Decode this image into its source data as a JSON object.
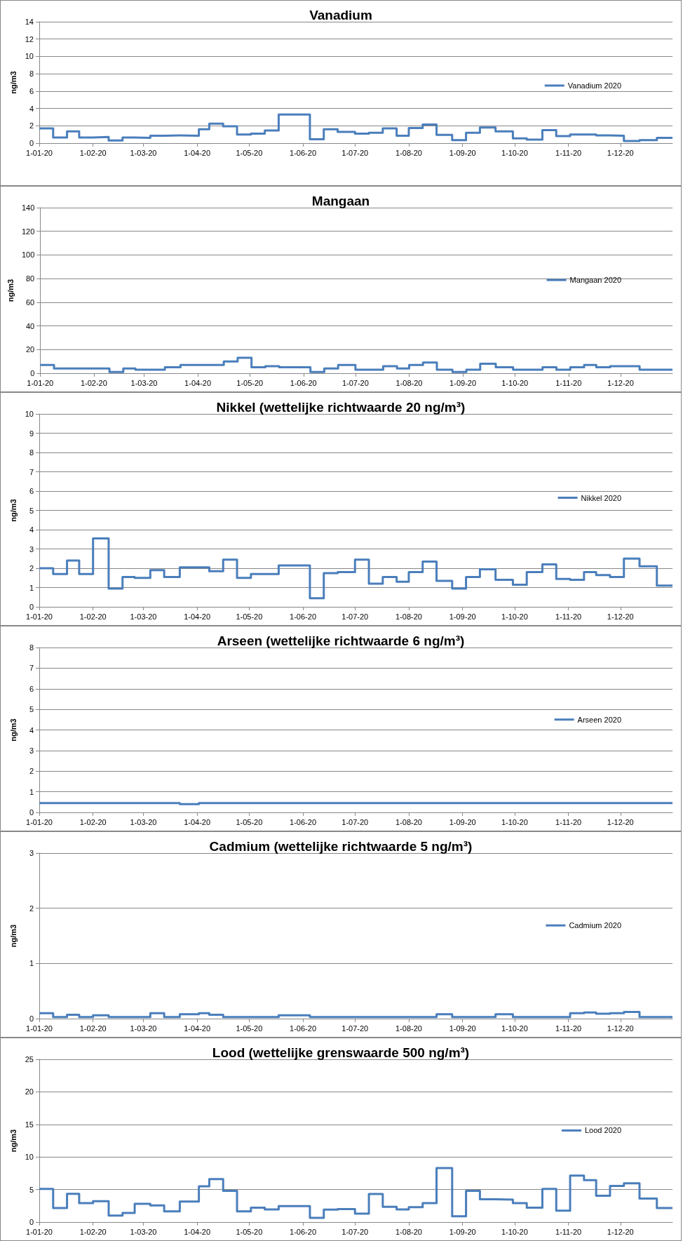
{
  "chart_data": [
    {
      "type": "step",
      "title": "Vanadium",
      "ylabel": "ng/m3",
      "ylim": [
        0,
        14
      ],
      "yticks": [
        0,
        2,
        4,
        6,
        8,
        10,
        12,
        14
      ],
      "xlim": [
        "2020-01-01",
        "2020-12-31"
      ],
      "xticks": [
        {
          "value": "2020-01-01",
          "label": "1-01-20"
        },
        {
          "value": "2020-02-01",
          "label": "1-02-20"
        },
        {
          "value": "2020-03-01",
          "label": "1-03-20"
        },
        {
          "value": "2020-04-01",
          "label": "1-04-20"
        },
        {
          "value": "2020-05-01",
          "label": "1-05-20"
        },
        {
          "value": "2020-06-01",
          "label": "1-06-20"
        },
        {
          "value": "2020-07-01",
          "label": "1-07-20"
        },
        {
          "value": "2020-08-01",
          "label": "1-08-20"
        },
        {
          "value": "2020-09-01",
          "label": "1-09-20"
        },
        {
          "value": "2020-10-01",
          "label": "1-10-20"
        },
        {
          "value": "2020-11-01",
          "label": "1-11-20"
        },
        {
          "value": "2020-12-01",
          "label": "1-12-20"
        }
      ],
      "x": [
        "2020-01-01",
        "2020-01-09",
        "2020-01-17",
        "2020-01-24",
        "2020-02-01",
        "2020-02-10",
        "2020-02-18",
        "2020-02-25",
        "2020-03-05",
        "2020-03-13",
        "2020-03-22",
        "2020-04-02",
        "2020-04-08",
        "2020-04-16",
        "2020-04-24",
        "2020-05-02",
        "2020-05-10",
        "2020-05-18",
        "2020-05-27",
        "2020-06-05",
        "2020-06-13",
        "2020-06-21",
        "2020-07-01",
        "2020-07-09",
        "2020-07-17",
        "2020-07-25",
        "2020-08-01",
        "2020-08-09",
        "2020-08-17",
        "2020-08-26",
        "2020-09-03",
        "2020-09-11",
        "2020-09-20",
        "2020-09-30",
        "2020-10-08",
        "2020-10-17",
        "2020-10-25",
        "2020-11-02",
        "2020-11-10",
        "2020-11-17",
        "2020-11-25",
        "2020-12-03",
        "2020-12-12",
        "2020-12-22",
        "2020-12-31"
      ],
      "series": [
        {
          "name": "Vanadium 2020",
          "color": "#4a7ebb",
          "values": [
            1.7,
            0.65,
            1.35,
            0.65,
            0.7,
            0.3,
            0.65,
            0.6,
            0.85,
            0.9,
            0.85,
            1.6,
            2.25,
            1.95,
            1.0,
            1.1,
            1.45,
            3.3,
            3.3,
            0.45,
            1.6,
            1.3,
            1.1,
            1.2,
            1.7,
            0.85,
            1.75,
            2.15,
            0.95,
            0.35,
            1.2,
            1.8,
            1.35,
            0.55,
            0.4,
            1.5,
            0.8,
            1.0,
            1.0,
            0.9,
            0.85,
            0.25,
            0.35,
            0.6,
            0.6
          ]
        }
      ],
      "grid": "y",
      "legend": "right",
      "marker": "none",
      "line_style": "solid"
    },
    {
      "type": "step",
      "title": "Mangaan",
      "ylabel": "ng/m3",
      "ylim": [
        0,
        140
      ],
      "yticks": [
        0,
        20,
        40,
        60,
        80,
        100,
        120,
        140
      ],
      "xlim": [
        "2020-01-01",
        "2020-12-31"
      ],
      "xticks": [
        {
          "value": "2020-01-01",
          "label": "1-01-20"
        },
        {
          "value": "2020-02-01",
          "label": "1-02-20"
        },
        {
          "value": "2020-03-01",
          "label": "1-03-20"
        },
        {
          "value": "2020-04-01",
          "label": "1-04-20"
        },
        {
          "value": "2020-05-01",
          "label": "1-05-20"
        },
        {
          "value": "2020-06-01",
          "label": "1-06-20"
        },
        {
          "value": "2020-07-01",
          "label": "1-07-20"
        },
        {
          "value": "2020-08-01",
          "label": "1-08-20"
        },
        {
          "value": "2020-09-01",
          "label": "1-09-20"
        },
        {
          "value": "2020-10-01",
          "label": "1-10-20"
        },
        {
          "value": "2020-11-01",
          "label": "1-11-20"
        },
        {
          "value": "2020-12-01",
          "label": "1-12-20"
        }
      ],
      "x": [
        "2020-01-01",
        "2020-01-09",
        "2020-01-17",
        "2020-01-24",
        "2020-02-01",
        "2020-02-10",
        "2020-02-18",
        "2020-02-25",
        "2020-03-05",
        "2020-03-13",
        "2020-03-22",
        "2020-04-02",
        "2020-04-08",
        "2020-04-16",
        "2020-04-24",
        "2020-05-02",
        "2020-05-10",
        "2020-05-18",
        "2020-05-27",
        "2020-06-05",
        "2020-06-13",
        "2020-06-21",
        "2020-07-01",
        "2020-07-09",
        "2020-07-17",
        "2020-07-25",
        "2020-08-01",
        "2020-08-09",
        "2020-08-17",
        "2020-08-26",
        "2020-09-03",
        "2020-09-11",
        "2020-09-20",
        "2020-09-30",
        "2020-10-08",
        "2020-10-17",
        "2020-10-25",
        "2020-11-02",
        "2020-11-10",
        "2020-11-17",
        "2020-11-25",
        "2020-12-03",
        "2020-12-12",
        "2020-12-22",
        "2020-12-31"
      ],
      "series": [
        {
          "name": "Mangaan 2020",
          "color": "#4a7ebb",
          "values": [
            7,
            4,
            4,
            4,
            4,
            1,
            4,
            3,
            3,
            5,
            7,
            7,
            7,
            10,
            13,
            5,
            6,
            5,
            5,
            1,
            4,
            7,
            3,
            3,
            6,
            4,
            7,
            9,
            3,
            1,
            3,
            8,
            5,
            3,
            3,
            5,
            3,
            5,
            7,
            5,
            6,
            6,
            3,
            3,
            3
          ]
        }
      ],
      "grid": "y",
      "legend": "right",
      "marker": "none",
      "line_style": "solid"
    },
    {
      "type": "step",
      "title": "Nikkel (wettelijke richtwaarde 20 ng/m³)",
      "ylabel": "ng/m3",
      "ylim": [
        0,
        10
      ],
      "yticks": [
        0,
        1,
        2,
        3,
        4,
        5,
        6,
        7,
        8,
        9,
        10
      ],
      "xlim": [
        "2020-01-01",
        "2020-12-31"
      ],
      "xticks": [
        {
          "value": "2020-01-01",
          "label": "1-01-20"
        },
        {
          "value": "2020-02-01",
          "label": "1-02-20"
        },
        {
          "value": "2020-03-01",
          "label": "1-03-20"
        },
        {
          "value": "2020-04-01",
          "label": "1-04-20"
        },
        {
          "value": "2020-05-01",
          "label": "1-05-20"
        },
        {
          "value": "2020-06-01",
          "label": "1-06-20"
        },
        {
          "value": "2020-07-01",
          "label": "1-07-20"
        },
        {
          "value": "2020-08-01",
          "label": "1-08-20"
        },
        {
          "value": "2020-09-01",
          "label": "1-09-20"
        },
        {
          "value": "2020-10-01",
          "label": "1-10-20"
        },
        {
          "value": "2020-11-01",
          "label": "1-11-20"
        },
        {
          "value": "2020-12-01",
          "label": "1-12-20"
        }
      ],
      "x": [
        "2020-01-01",
        "2020-01-09",
        "2020-01-17",
        "2020-01-24",
        "2020-02-01",
        "2020-02-10",
        "2020-02-18",
        "2020-02-25",
        "2020-03-05",
        "2020-03-13",
        "2020-03-22",
        "2020-04-02",
        "2020-04-08",
        "2020-04-16",
        "2020-04-24",
        "2020-05-02",
        "2020-05-10",
        "2020-05-18",
        "2020-05-27",
        "2020-06-05",
        "2020-06-13",
        "2020-06-21",
        "2020-07-01",
        "2020-07-09",
        "2020-07-17",
        "2020-07-25",
        "2020-08-01",
        "2020-08-09",
        "2020-08-17",
        "2020-08-26",
        "2020-09-03",
        "2020-09-11",
        "2020-09-20",
        "2020-09-30",
        "2020-10-08",
        "2020-10-17",
        "2020-10-25",
        "2020-11-02",
        "2020-11-10",
        "2020-11-17",
        "2020-11-25",
        "2020-12-03",
        "2020-12-12",
        "2020-12-22",
        "2020-12-31"
      ],
      "series": [
        {
          "name": "Nikkel 2020",
          "color": "#4a7ebb",
          "values": [
            2.0,
            1.7,
            2.4,
            1.7,
            3.55,
            0.95,
            1.55,
            1.5,
            1.9,
            1.55,
            2.05,
            2.05,
            1.85,
            2.45,
            1.5,
            1.7,
            1.7,
            2.15,
            2.15,
            0.45,
            1.75,
            1.8,
            2.45,
            1.2,
            1.55,
            1.3,
            1.8,
            2.35,
            1.35,
            0.95,
            1.55,
            1.95,
            1.4,
            1.15,
            1.8,
            2.2,
            1.45,
            1.4,
            1.8,
            1.65,
            1.55,
            2.5,
            2.1,
            1.1,
            1.1
          ]
        }
      ],
      "grid": "y",
      "legend": "right",
      "marker": "none",
      "line_style": "solid"
    },
    {
      "type": "step",
      "title": "Arseen (wettelijke richtwaarde 6 ng/m³)",
      "ylabel": "ng/m3",
      "ylim": [
        0,
        8
      ],
      "yticks": [
        0,
        1,
        2,
        3,
        4,
        5,
        6,
        7,
        8
      ],
      "xlim": [
        "2020-01-01",
        "2020-12-31"
      ],
      "xticks": [
        {
          "value": "2020-01-01",
          "label": "1-01-20"
        },
        {
          "value": "2020-02-01",
          "label": "1-02-20"
        },
        {
          "value": "2020-03-01",
          "label": "1-03-20"
        },
        {
          "value": "2020-04-01",
          "label": "1-04-20"
        },
        {
          "value": "2020-05-01",
          "label": "1-05-20"
        },
        {
          "value": "2020-06-01",
          "label": "1-06-20"
        },
        {
          "value": "2020-07-01",
          "label": "1-07-20"
        },
        {
          "value": "2020-08-01",
          "label": "1-08-20"
        },
        {
          "value": "2020-09-01",
          "label": "1-09-20"
        },
        {
          "value": "2020-10-01",
          "label": "1-10-20"
        },
        {
          "value": "2020-11-01",
          "label": "1-11-20"
        },
        {
          "value": "2020-12-01",
          "label": "1-12-20"
        }
      ],
      "x": [
        "2020-01-01",
        "2020-01-09",
        "2020-01-17",
        "2020-01-24",
        "2020-02-01",
        "2020-02-10",
        "2020-02-18",
        "2020-02-25",
        "2020-03-05",
        "2020-03-13",
        "2020-03-22",
        "2020-04-02",
        "2020-04-08",
        "2020-04-16",
        "2020-04-24",
        "2020-05-02",
        "2020-05-10",
        "2020-05-18",
        "2020-05-27",
        "2020-06-05",
        "2020-06-13",
        "2020-06-21",
        "2020-07-01",
        "2020-07-09",
        "2020-07-17",
        "2020-07-25",
        "2020-08-01",
        "2020-08-09",
        "2020-08-17",
        "2020-08-26",
        "2020-09-03",
        "2020-09-11",
        "2020-09-20",
        "2020-09-30",
        "2020-10-08",
        "2020-10-17",
        "2020-10-25",
        "2020-11-02",
        "2020-11-10",
        "2020-11-17",
        "2020-11-25",
        "2020-12-03",
        "2020-12-12",
        "2020-12-22",
        "2020-12-31"
      ],
      "series": [
        {
          "name": "Arseen 2020",
          "color": "#4a7ebb",
          "values": [
            0.45,
            0.45,
            0.45,
            0.45,
            0.45,
            0.45,
            0.45,
            0.45,
            0.45,
            0.45,
            0.4,
            0.45,
            0.45,
            0.45,
            0.45,
            0.45,
            0.45,
            0.45,
            0.45,
            0.45,
            0.45,
            0.45,
            0.45,
            0.45,
            0.45,
            0.45,
            0.45,
            0.45,
            0.45,
            0.45,
            0.45,
            0.45,
            0.45,
            0.45,
            0.45,
            0.45,
            0.45,
            0.45,
            0.45,
            0.45,
            0.45,
            0.45,
            0.45,
            0.45,
            0.45
          ]
        }
      ],
      "grid": "y",
      "legend": "right",
      "marker": "none",
      "line_style": "solid"
    },
    {
      "type": "step",
      "title": "Cadmium (wettelijke richtwaarde 5 ng/m³)",
      "ylabel": "ng/m3",
      "ylim": [
        0,
        3
      ],
      "yticks": [
        0,
        1,
        2,
        3
      ],
      "xlim": [
        "2020-01-01",
        "2020-12-31"
      ],
      "xticks": [
        {
          "value": "2020-01-01",
          "label": "1-01-20"
        },
        {
          "value": "2020-02-01",
          "label": "1-02-20"
        },
        {
          "value": "2020-03-01",
          "label": "1-03-20"
        },
        {
          "value": "2020-04-01",
          "label": "1-04-20"
        },
        {
          "value": "2020-05-01",
          "label": "1-05-20"
        },
        {
          "value": "2020-06-01",
          "label": "1-06-20"
        },
        {
          "value": "2020-07-01",
          "label": "1-07-20"
        },
        {
          "value": "2020-08-01",
          "label": "1-08-20"
        },
        {
          "value": "2020-09-01",
          "label": "1-09-20"
        },
        {
          "value": "2020-10-01",
          "label": "1-10-20"
        },
        {
          "value": "2020-11-01",
          "label": "1-11-20"
        },
        {
          "value": "2020-12-01",
          "label": "1-12-20"
        }
      ],
      "x": [
        "2020-01-01",
        "2020-01-09",
        "2020-01-17",
        "2020-01-24",
        "2020-02-01",
        "2020-02-10",
        "2020-02-18",
        "2020-02-25",
        "2020-03-05",
        "2020-03-13",
        "2020-03-22",
        "2020-04-02",
        "2020-04-08",
        "2020-04-16",
        "2020-04-24",
        "2020-05-02",
        "2020-05-10",
        "2020-05-18",
        "2020-05-27",
        "2020-06-05",
        "2020-06-13",
        "2020-06-21",
        "2020-07-01",
        "2020-07-09",
        "2020-07-17",
        "2020-07-25",
        "2020-08-01",
        "2020-08-09",
        "2020-08-17",
        "2020-08-26",
        "2020-09-03",
        "2020-09-11",
        "2020-09-20",
        "2020-09-30",
        "2020-10-08",
        "2020-10-17",
        "2020-10-25",
        "2020-11-02",
        "2020-11-10",
        "2020-11-17",
        "2020-11-25",
        "2020-12-03",
        "2020-12-12",
        "2020-12-22",
        "2020-12-31"
      ],
      "series": [
        {
          "name": "Cadmium 2020",
          "color": "#4a7ebb",
          "values": [
            0.1,
            0.03,
            0.07,
            0.03,
            0.06,
            0.03,
            0.03,
            0.03,
            0.1,
            0.03,
            0.08,
            0.1,
            0.07,
            0.03,
            0.03,
            0.03,
            0.03,
            0.06,
            0.06,
            0.03,
            0.03,
            0.03,
            0.03,
            0.03,
            0.03,
            0.03,
            0.03,
            0.03,
            0.08,
            0.03,
            0.03,
            0.03,
            0.08,
            0.03,
            0.03,
            0.03,
            0.03,
            0.1,
            0.11,
            0.09,
            0.1,
            0.12,
            0.03,
            0.03,
            0.03
          ]
        }
      ],
      "grid": "y",
      "legend": "right",
      "marker": "none",
      "line_style": "solid"
    },
    {
      "type": "step",
      "title": "Lood (wettelijke grenswaarde 500 ng/m³)",
      "ylabel": "ng/m3",
      "ylim": [
        0,
        25
      ],
      "yticks": [
        0,
        5,
        10,
        15,
        20,
        25
      ],
      "xlim": [
        "2020-01-01",
        "2020-12-31"
      ],
      "xticks": [
        {
          "value": "2020-01-01",
          "label": "1-01-20"
        },
        {
          "value": "2020-02-01",
          "label": "1-02-20"
        },
        {
          "value": "2020-03-01",
          "label": "1-03-20"
        },
        {
          "value": "2020-04-01",
          "label": "1-04-20"
        },
        {
          "value": "2020-05-01",
          "label": "1-05-20"
        },
        {
          "value": "2020-06-01",
          "label": "1-06-20"
        },
        {
          "value": "2020-07-01",
          "label": "1-07-20"
        },
        {
          "value": "2020-08-01",
          "label": "1-08-20"
        },
        {
          "value": "2020-09-01",
          "label": "1-09-20"
        },
        {
          "value": "2020-10-01",
          "label": "1-10-20"
        },
        {
          "value": "2020-11-01",
          "label": "1-11-20"
        },
        {
          "value": "2020-12-01",
          "label": "1-12-20"
        }
      ],
      "x": [
        "2020-01-01",
        "2020-01-09",
        "2020-01-17",
        "2020-01-24",
        "2020-02-01",
        "2020-02-10",
        "2020-02-18",
        "2020-02-25",
        "2020-03-05",
        "2020-03-13",
        "2020-03-22",
        "2020-04-02",
        "2020-04-08",
        "2020-04-16",
        "2020-04-24",
        "2020-05-02",
        "2020-05-10",
        "2020-05-18",
        "2020-05-27",
        "2020-06-05",
        "2020-06-13",
        "2020-06-21",
        "2020-07-01",
        "2020-07-09",
        "2020-07-17",
        "2020-07-25",
        "2020-08-01",
        "2020-08-09",
        "2020-08-17",
        "2020-08-26",
        "2020-09-03",
        "2020-09-11",
        "2020-09-20",
        "2020-09-30",
        "2020-10-08",
        "2020-10-17",
        "2020-10-25",
        "2020-11-02",
        "2020-11-10",
        "2020-11-17",
        "2020-11-25",
        "2020-12-03",
        "2020-12-12",
        "2020-12-22",
        "2020-12-31"
      ],
      "series": [
        {
          "name": "Lood 2020",
          "color": "#4a7ebb",
          "values": [
            5.1,
            2.15,
            4.35,
            2.9,
            3.2,
            1.0,
            1.4,
            2.8,
            2.55,
            1.65,
            3.15,
            5.5,
            6.6,
            4.8,
            1.65,
            2.2,
            1.95,
            2.45,
            2.45,
            0.65,
            1.9,
            2.0,
            1.3,
            4.3,
            2.35,
            1.95,
            2.3,
            2.9,
            8.3,
            0.9,
            4.8,
            3.5,
            3.45,
            2.9,
            2.2,
            5.1,
            1.75,
            7.15,
            6.45,
            4.05,
            5.55,
            5.95,
            3.6,
            2.15,
            2.15
          ]
        }
      ],
      "grid": "y",
      "legend": "right",
      "marker": "none",
      "line_style": "solid"
    }
  ]
}
